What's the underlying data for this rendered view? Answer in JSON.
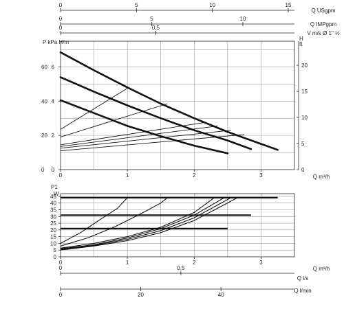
{
  "chart_data": [
    {
      "type": "line",
      "title": "",
      "xlabel": "Q m³/h",
      "ylabel": "P kPa",
      "ylabel_unit2": "H/m",
      "xlim": [
        0,
        3.5
      ],
      "ylim": [
        0,
        7.5
      ],
      "y_ticks": [
        0,
        20,
        40,
        60
      ],
      "x_ticks": [
        0,
        1,
        2,
        3
      ],
      "grid": true,
      "right_axis": {
        "label": "H",
        "label2": "ft",
        "ticks": [
          0,
          5,
          10,
          15,
          20
        ]
      },
      "top_axes": [
        {
          "label": "Q USgpm",
          "ticks": [
            "0",
            "5",
            "10",
            "15"
          ],
          "values": [
            0,
            5,
            10,
            15
          ]
        },
        {
          "label": "Q IMPgpm",
          "ticks": [
            "0",
            "5",
            "10"
          ],
          "values": [
            0,
            5,
            10
          ]
        },
        {
          "label": "V m/s Ø 1\" ½",
          "ticks": [
            "0",
            "0,5"
          ],
          "values": [
            0,
            0.5
          ]
        }
      ],
      "series": [
        {
          "values": [
            [
              0,
              6.85
            ],
            [
              0.5,
              5.8
            ],
            [
              1.0,
              4.8
            ],
            [
              1.5,
              3.85
            ],
            [
              2.0,
              3.0
            ],
            [
              2.5,
              2.2
            ],
            [
              3.0,
              1.5
            ],
            [
              3.25,
              1.15
            ]
          ]
        },
        {
          "values": [
            [
              0,
              5.4
            ],
            [
              0.5,
              4.55
            ],
            [
              1.0,
              3.75
            ],
            [
              1.5,
              3.0
            ],
            [
              2.0,
              2.3
            ],
            [
              2.5,
              1.7
            ],
            [
              2.85,
              1.2
            ]
          ]
        },
        {
          "values": [
            [
              0,
              4.05
            ],
            [
              0.5,
              3.3
            ],
            [
              1.0,
              2.55
            ],
            [
              1.5,
              1.95
            ],
            [
              2.0,
              1.4
            ],
            [
              2.5,
              0.95
            ]
          ]
        },
        {
          "values": [
            [
              0,
              2.35
            ],
            [
              1.0,
              4.75
            ]
          ]
        },
        {
          "values": [
            [
              0,
              1.9
            ],
            [
              1.6,
              3.85
            ]
          ]
        },
        {
          "values": [
            [
              0,
              1.45
            ],
            [
              2.15,
              2.75
            ]
          ]
        },
        {
          "values": [
            [
              0,
              1.35
            ],
            [
              2.35,
              2.55
            ]
          ]
        },
        {
          "values": [
            [
              0,
              1.25
            ],
            [
              2.55,
              2.3
            ]
          ]
        },
        {
          "values": [
            [
              0,
              1.1
            ],
            [
              2.75,
              2.05
            ]
          ]
        }
      ]
    },
    {
      "type": "line",
      "title": "",
      "xlabel": "Q m³/h",
      "ylabel": "P1",
      "ylabel_unit": "W",
      "xlim": [
        0,
        3.5
      ],
      "ylim": [
        0,
        47
      ],
      "y_ticks": [
        0,
        5,
        10,
        15,
        20,
        25,
        30,
        35,
        40,
        45
      ],
      "x_ticks": [
        0,
        1,
        2,
        3
      ],
      "grid": true,
      "bottom_axes": [
        {
          "label": "Q l/s",
          "ticks": [
            "0",
            "0,5"
          ],
          "values": [
            0,
            0.5
          ]
        },
        {
          "label": "Q l/min",
          "ticks": [
            "0",
            "20",
            "40"
          ],
          "values": [
            0,
            20,
            40
          ]
        }
      ],
      "series": [
        {
          "values": [
            [
              0,
              44
            ],
            [
              3.25,
              44
            ]
          ]
        },
        {
          "values": [
            [
              0,
              31
            ],
            [
              2.85,
              31
            ]
          ]
        },
        {
          "values": [
            [
              0,
              21
            ],
            [
              2.5,
              21
            ]
          ]
        },
        {
          "values": [
            [
              0,
              10
            ],
            [
              0.3,
              18
            ],
            [
              0.6,
              28
            ],
            [
              0.85,
              36
            ],
            [
              1.0,
              44
            ]
          ]
        },
        {
          "values": [
            [
              0,
              8
            ],
            [
              0.4,
              14
            ],
            [
              0.8,
              22
            ],
            [
              1.2,
              32
            ],
            [
              1.5,
              40
            ],
            [
              1.6,
              44
            ]
          ]
        },
        {
          "values": [
            [
              0,
              6.5
            ],
            [
              0.5,
              10
            ],
            [
              1.0,
              15
            ],
            [
              1.5,
              22
            ],
            [
              2.0,
              33
            ],
            [
              2.3,
              44
            ]
          ]
        },
        {
          "values": [
            [
              0,
              6
            ],
            [
              0.5,
              9
            ],
            [
              1.0,
              14
            ],
            [
              1.5,
              21
            ],
            [
              2.0,
              31
            ],
            [
              2.45,
              44
            ]
          ]
        },
        {
          "values": [
            [
              0,
              5.5
            ],
            [
              0.5,
              8.5
            ],
            [
              1.0,
              13
            ],
            [
              1.5,
              19.5
            ],
            [
              2.0,
              29
            ],
            [
              2.55,
              44
            ]
          ]
        },
        {
          "values": [
            [
              0,
              5
            ],
            [
              0.5,
              8
            ],
            [
              1.0,
              12
            ],
            [
              1.5,
              18
            ],
            [
              2.0,
              27
            ],
            [
              2.65,
              44
            ]
          ]
        }
      ]
    }
  ]
}
